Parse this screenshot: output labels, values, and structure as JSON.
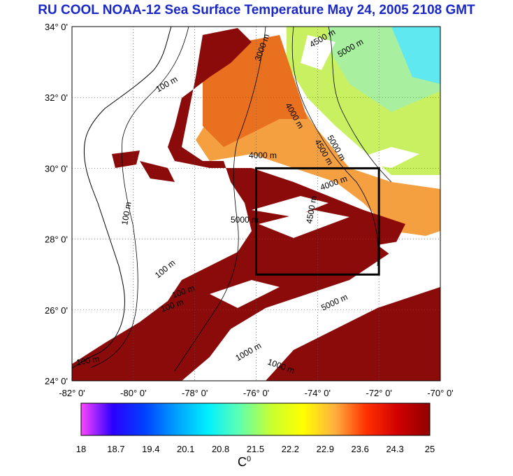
{
  "title": "RU COOL  NOAA-12 Sea Surface Temperature May 24, 2005 2108 GMT",
  "map": {
    "lat_ticks": [
      "34° 0'",
      "32° 0'",
      "30° 0'",
      "28° 0'",
      "26° 0'",
      "24° 0'"
    ],
    "lon_ticks": [
      "-82° 0'",
      "-80° 0'",
      "-78° 0'",
      "-76° 0'",
      "-74° 0'",
      "-72° 0'",
      "-70° 0'"
    ],
    "lat_range": [
      24,
      34
    ],
    "lon_range": [
      -82,
      -70
    ],
    "box": {
      "lon": [
        -76,
        -72
      ],
      "lat": [
        27,
        30
      ]
    },
    "contour_labels": [
      "100 m",
      "100 m",
      "100 m",
      "100 m",
      "100 m",
      "100 m",
      "4000 m",
      "4000 m",
      "4000 m",
      "4500 m",
      "4500 m",
      "4500 m",
      "5000 m",
      "5000 m",
      "5000 m",
      "5000 m",
      "1000 m",
      "3000 m",
      "1000 m"
    ]
  },
  "colorbar": {
    "ticks": [
      "18",
      "18.7",
      "19.4",
      "20.1",
      "20.8",
      "21.5",
      "22.2",
      "22.9",
      "23.6",
      "24.3",
      "25"
    ],
    "unit_base": "C",
    "unit_sup": "0",
    "colors": [
      "#ff44ff",
      "#2b00ff",
      "#0040ff",
      "#00a0ff",
      "#00f0ff",
      "#60ffb0",
      "#c8ff30",
      "#ffff00",
      "#ffb040",
      "#ff3000",
      "#d00000",
      "#900000"
    ]
  },
  "colors": {
    "title": "#1a28c8",
    "warm_water": "#8b0a0a",
    "mid_water": "#e84a18",
    "orange_water": "#f4a040",
    "cool_water": "#c8f060"
  }
}
